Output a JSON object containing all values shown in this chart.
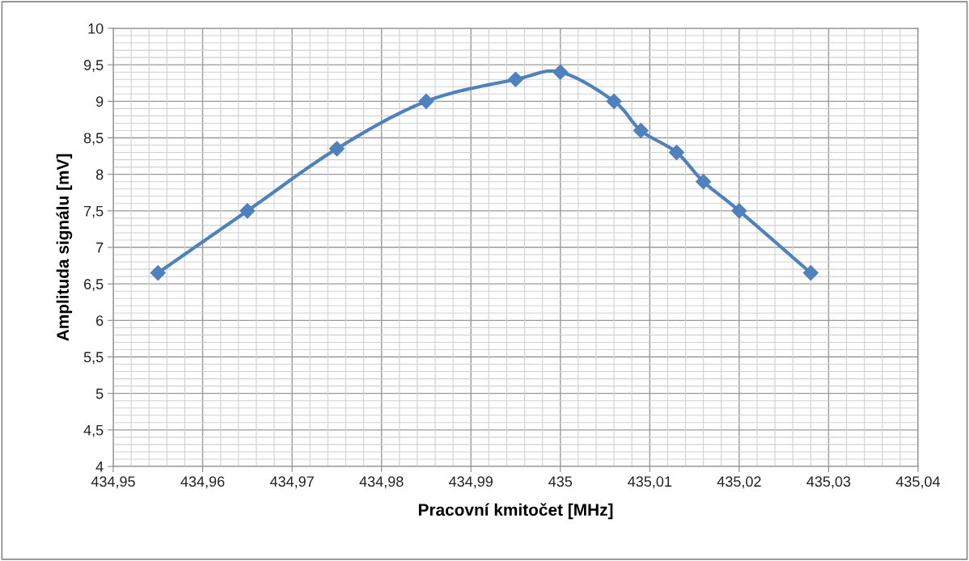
{
  "chart_data": {
    "type": "line",
    "xlabel": "Pracovní kmitočet [MHz]",
    "ylabel": "Amplituda signálu [mV]",
    "x": [
      434.955,
      434.965,
      434.975,
      434.985,
      434.995,
      435.0,
      435.006,
      435.009,
      435.013,
      435.016,
      435.02,
      435.028
    ],
    "series": [
      {
        "color": "#4f81bd",
        "values": [
          6.65,
          7.5,
          8.35,
          9.0,
          9.3,
          9.4,
          9.0,
          8.6,
          8.3,
          7.9,
          7.5,
          6.65
        ]
      }
    ],
    "marker": "diamond",
    "line_style": "solid",
    "grid": true,
    "xlim": [
      434.95,
      435.04
    ],
    "xticks": [
      {
        "value": 434.95,
        "label": "434,95"
      },
      {
        "value": 434.96,
        "label": "434,96"
      },
      {
        "value": 434.97,
        "label": "434,97"
      },
      {
        "value": 434.98,
        "label": "434,98"
      },
      {
        "value": 434.99,
        "label": "434,99"
      },
      {
        "value": 435,
        "label": "435"
      },
      {
        "value": 435.01,
        "label": "435,01"
      },
      {
        "value": 435.02,
        "label": "435,02"
      },
      {
        "value": 435.03,
        "label": "435,03"
      },
      {
        "value": 435.04,
        "label": "435,04"
      }
    ],
    "ylim": [
      4,
      10
    ],
    "yticks": [
      4,
      {
        "value": 4.5,
        "label": "4,5"
      },
      5,
      {
        "value": 5.5,
        "label": "5,5"
      },
      6,
      {
        "value": 6.5,
        "label": "6,5"
      },
      7,
      {
        "value": 7.5,
        "label": "7,5"
      },
      8,
      {
        "value": 8.5,
        "label": "8,5"
      },
      9,
      {
        "value": 9.5,
        "label": "9,5"
      },
      10
    ]
  }
}
